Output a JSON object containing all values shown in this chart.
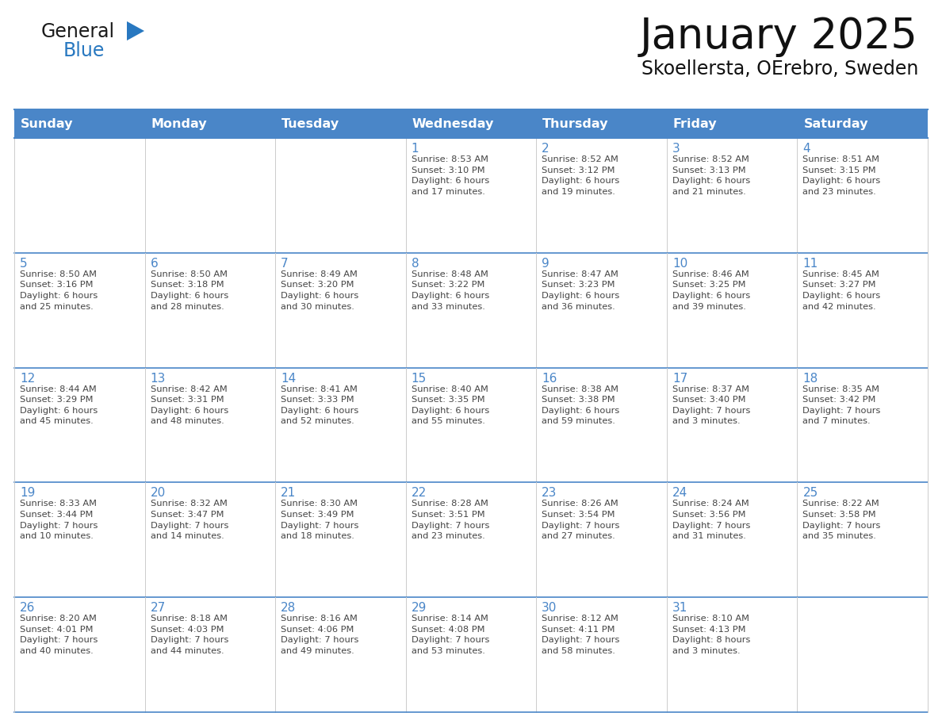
{
  "title": "January 2025",
  "subtitle": "Skoellersta, OErebro, Sweden",
  "header_bg": "#4a86c8",
  "header_text": "#ffffff",
  "border_color": "#4a86c8",
  "row_border_color": "#4a86c8",
  "col_border_color": "#cccccc",
  "text_color": "#444444",
  "day_number_color": "#4a86c8",
  "days_of_week": [
    "Sunday",
    "Monday",
    "Tuesday",
    "Wednesday",
    "Thursday",
    "Friday",
    "Saturday"
  ],
  "calendar_data": [
    [
      {
        "day": "",
        "info": ""
      },
      {
        "day": "",
        "info": ""
      },
      {
        "day": "",
        "info": ""
      },
      {
        "day": "1",
        "info": "Sunrise: 8:53 AM\nSunset: 3:10 PM\nDaylight: 6 hours\nand 17 minutes."
      },
      {
        "day": "2",
        "info": "Sunrise: 8:52 AM\nSunset: 3:12 PM\nDaylight: 6 hours\nand 19 minutes."
      },
      {
        "day": "3",
        "info": "Sunrise: 8:52 AM\nSunset: 3:13 PM\nDaylight: 6 hours\nand 21 minutes."
      },
      {
        "day": "4",
        "info": "Sunrise: 8:51 AM\nSunset: 3:15 PM\nDaylight: 6 hours\nand 23 minutes."
      }
    ],
    [
      {
        "day": "5",
        "info": "Sunrise: 8:50 AM\nSunset: 3:16 PM\nDaylight: 6 hours\nand 25 minutes."
      },
      {
        "day": "6",
        "info": "Sunrise: 8:50 AM\nSunset: 3:18 PM\nDaylight: 6 hours\nand 28 minutes."
      },
      {
        "day": "7",
        "info": "Sunrise: 8:49 AM\nSunset: 3:20 PM\nDaylight: 6 hours\nand 30 minutes."
      },
      {
        "day": "8",
        "info": "Sunrise: 8:48 AM\nSunset: 3:22 PM\nDaylight: 6 hours\nand 33 minutes."
      },
      {
        "day": "9",
        "info": "Sunrise: 8:47 AM\nSunset: 3:23 PM\nDaylight: 6 hours\nand 36 minutes."
      },
      {
        "day": "10",
        "info": "Sunrise: 8:46 AM\nSunset: 3:25 PM\nDaylight: 6 hours\nand 39 minutes."
      },
      {
        "day": "11",
        "info": "Sunrise: 8:45 AM\nSunset: 3:27 PM\nDaylight: 6 hours\nand 42 minutes."
      }
    ],
    [
      {
        "day": "12",
        "info": "Sunrise: 8:44 AM\nSunset: 3:29 PM\nDaylight: 6 hours\nand 45 minutes."
      },
      {
        "day": "13",
        "info": "Sunrise: 8:42 AM\nSunset: 3:31 PM\nDaylight: 6 hours\nand 48 minutes."
      },
      {
        "day": "14",
        "info": "Sunrise: 8:41 AM\nSunset: 3:33 PM\nDaylight: 6 hours\nand 52 minutes."
      },
      {
        "day": "15",
        "info": "Sunrise: 8:40 AM\nSunset: 3:35 PM\nDaylight: 6 hours\nand 55 minutes."
      },
      {
        "day": "16",
        "info": "Sunrise: 8:38 AM\nSunset: 3:38 PM\nDaylight: 6 hours\nand 59 minutes."
      },
      {
        "day": "17",
        "info": "Sunrise: 8:37 AM\nSunset: 3:40 PM\nDaylight: 7 hours\nand 3 minutes."
      },
      {
        "day": "18",
        "info": "Sunrise: 8:35 AM\nSunset: 3:42 PM\nDaylight: 7 hours\nand 7 minutes."
      }
    ],
    [
      {
        "day": "19",
        "info": "Sunrise: 8:33 AM\nSunset: 3:44 PM\nDaylight: 7 hours\nand 10 minutes."
      },
      {
        "day": "20",
        "info": "Sunrise: 8:32 AM\nSunset: 3:47 PM\nDaylight: 7 hours\nand 14 minutes."
      },
      {
        "day": "21",
        "info": "Sunrise: 8:30 AM\nSunset: 3:49 PM\nDaylight: 7 hours\nand 18 minutes."
      },
      {
        "day": "22",
        "info": "Sunrise: 8:28 AM\nSunset: 3:51 PM\nDaylight: 7 hours\nand 23 minutes."
      },
      {
        "day": "23",
        "info": "Sunrise: 8:26 AM\nSunset: 3:54 PM\nDaylight: 7 hours\nand 27 minutes."
      },
      {
        "day": "24",
        "info": "Sunrise: 8:24 AM\nSunset: 3:56 PM\nDaylight: 7 hours\nand 31 minutes."
      },
      {
        "day": "25",
        "info": "Sunrise: 8:22 AM\nSunset: 3:58 PM\nDaylight: 7 hours\nand 35 minutes."
      }
    ],
    [
      {
        "day": "26",
        "info": "Sunrise: 8:20 AM\nSunset: 4:01 PM\nDaylight: 7 hours\nand 40 minutes."
      },
      {
        "day": "27",
        "info": "Sunrise: 8:18 AM\nSunset: 4:03 PM\nDaylight: 7 hours\nand 44 minutes."
      },
      {
        "day": "28",
        "info": "Sunrise: 8:16 AM\nSunset: 4:06 PM\nDaylight: 7 hours\nand 49 minutes."
      },
      {
        "day": "29",
        "info": "Sunrise: 8:14 AM\nSunset: 4:08 PM\nDaylight: 7 hours\nand 53 minutes."
      },
      {
        "day": "30",
        "info": "Sunrise: 8:12 AM\nSunset: 4:11 PM\nDaylight: 7 hours\nand 58 minutes."
      },
      {
        "day": "31",
        "info": "Sunrise: 8:10 AM\nSunset: 4:13 PM\nDaylight: 8 hours\nand 3 minutes."
      },
      {
        "day": "",
        "info": ""
      }
    ]
  ],
  "logo_general_color": "#1a1a1a",
  "logo_blue_color": "#2878c0",
  "logo_triangle_color": "#2878c0",
  "fig_width": 11.88,
  "fig_height": 9.18,
  "dpi": 100
}
